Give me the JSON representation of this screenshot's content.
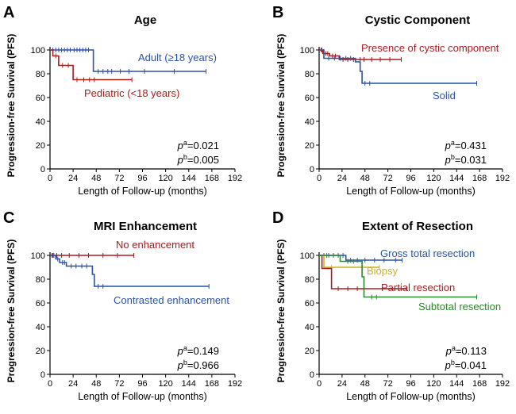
{
  "chart_data": [
    {
      "type": "line",
      "panel_letter": "A",
      "title": "Age",
      "xlabel": "Length of Follow-up (months)",
      "ylabel": "Progression-free Survival (PFS)",
      "xlim": [
        0,
        192
      ],
      "ylim": [
        0,
        100
      ],
      "xticks": [
        0,
        24,
        48,
        72,
        96,
        120,
        144,
        168,
        192
      ],
      "yticks": [
        0,
        20,
        40,
        60,
        80,
        100
      ],
      "pvalues": [
        {
          "sup": "a",
          "text": "=0.021"
        },
        {
          "sup": "b",
          "text": "=0.005"
        }
      ],
      "series": [
        {
          "name": "Adult (≥18 years)",
          "color": "#2a52a8",
          "steps": [
            [
              0,
              100
            ],
            [
              45,
              100
            ],
            [
              45,
              82
            ],
            [
              162,
              82
            ]
          ],
          "censors": [
            [
              3,
              100
            ],
            [
              6,
              100
            ],
            [
              9,
              100
            ],
            [
              12,
              100
            ],
            [
              15,
              100
            ],
            [
              18,
              100
            ],
            [
              21,
              100
            ],
            [
              25,
              100
            ],
            [
              28,
              100
            ],
            [
              31,
              100
            ],
            [
              34,
              100
            ],
            [
              37,
              100
            ],
            [
              40,
              100
            ],
            [
              50,
              82
            ],
            [
              55,
              82
            ],
            [
              60,
              82
            ],
            [
              64,
              82
            ],
            [
              73,
              82
            ],
            [
              82,
              82
            ],
            [
              98,
              82
            ],
            [
              129,
              82
            ],
            [
              162,
              82
            ]
          ]
        },
        {
          "name": "Pediatric (<18 years)",
          "color": "#a81c1c",
          "steps": [
            [
              0,
              100
            ],
            [
              3,
              100
            ],
            [
              3,
              95
            ],
            [
              9,
              95
            ],
            [
              9,
              87
            ],
            [
              24,
              87
            ],
            [
              24,
              75
            ],
            [
              85,
              75
            ]
          ],
          "censors": [
            [
              6,
              95
            ],
            [
              13,
              87
            ],
            [
              19,
              87
            ],
            [
              28,
              75
            ],
            [
              35,
              75
            ],
            [
              41,
              75
            ],
            [
              46,
              75
            ],
            [
              85,
              75
            ]
          ]
        }
      ]
    },
    {
      "type": "line",
      "panel_letter": "B",
      "title": "Cystic Component",
      "xlabel": "Length of Follow-up (months)",
      "ylabel": "Progression-free Survival (PFS)",
      "xlim": [
        0,
        192
      ],
      "ylim": [
        0,
        100
      ],
      "xticks": [
        0,
        24,
        48,
        72,
        96,
        120,
        144,
        168,
        192
      ],
      "yticks": [
        0,
        20,
        40,
        60,
        80,
        100
      ],
      "pvalues": [
        {
          "sup": "a",
          "text": "=0.431"
        },
        {
          "sup": "b",
          "text": "=0.031"
        }
      ],
      "series": [
        {
          "name": "Presence of cystic component",
          "color": "#a81c1c",
          "steps": [
            [
              0,
              100
            ],
            [
              4,
              100
            ],
            [
              4,
              97
            ],
            [
              11,
              97
            ],
            [
              11,
              95
            ],
            [
              21,
              95
            ],
            [
              21,
              92
            ],
            [
              86,
              92
            ]
          ],
          "censors": [
            [
              2,
              100
            ],
            [
              7,
              97
            ],
            [
              9,
              97
            ],
            [
              14,
              95
            ],
            [
              17,
              95
            ],
            [
              25,
              92
            ],
            [
              30,
              92
            ],
            [
              36,
              92
            ],
            [
              43,
              92
            ],
            [
              47,
              92
            ],
            [
              55,
              92
            ],
            [
              64,
              92
            ],
            [
              74,
              92
            ],
            [
              86,
              92
            ]
          ]
        },
        {
          "name": "Solid",
          "color": "#2a52a8",
          "steps": [
            [
              0,
              100
            ],
            [
              5,
              100
            ],
            [
              5,
              93
            ],
            [
              38,
              93
            ],
            [
              38,
              90
            ],
            [
              43,
              90
            ],
            [
              43,
              82
            ],
            [
              45,
              82
            ],
            [
              45,
              72
            ],
            [
              165,
              72
            ]
          ],
          "censors": [
            [
              3,
              100
            ],
            [
              10,
              93
            ],
            [
              16,
              93
            ],
            [
              22,
              93
            ],
            [
              28,
              93
            ],
            [
              33,
              93
            ],
            [
              48,
              72
            ],
            [
              53,
              72
            ],
            [
              165,
              72
            ]
          ]
        }
      ]
    },
    {
      "type": "line",
      "panel_letter": "C",
      "title": "MRI Enhancement",
      "xlabel": "Length of Follow-up (months)",
      "ylabel": "Progression-free Survival (PFS)",
      "xlim": [
        0,
        192
      ],
      "ylim": [
        0,
        100
      ],
      "xticks": [
        0,
        24,
        48,
        72,
        96,
        120,
        144,
        168,
        192
      ],
      "yticks": [
        0,
        20,
        40,
        60,
        80,
        100
      ],
      "pvalues": [
        {
          "sup": "a",
          "text": "=0.149"
        },
        {
          "sup": "b",
          "text": "=0.966"
        }
      ],
      "series": [
        {
          "name": "No enhancement",
          "color": "#a81c1c",
          "steps": [
            [
              0,
              100
            ],
            [
              87,
              100
            ]
          ],
          "censors": [
            [
              3,
              100
            ],
            [
              7,
              100
            ],
            [
              12,
              100
            ],
            [
              20,
              100
            ],
            [
              30,
              100
            ],
            [
              40,
              100
            ],
            [
              55,
              100
            ],
            [
              70,
              100
            ],
            [
              87,
              100
            ]
          ]
        },
        {
          "name": "Contrasted enhancement",
          "color": "#2a52a8",
          "steps": [
            [
              0,
              100
            ],
            [
              6,
              100
            ],
            [
              6,
              97
            ],
            [
              10,
              97
            ],
            [
              10,
              94
            ],
            [
              17,
              94
            ],
            [
              17,
              91
            ],
            [
              44,
              91
            ],
            [
              44,
              84
            ],
            [
              46,
              84
            ],
            [
              46,
              74
            ],
            [
              165,
              74
            ]
          ],
          "censors": [
            [
              2,
              100
            ],
            [
              4,
              100
            ],
            [
              8,
              97
            ],
            [
              13,
              94
            ],
            [
              15,
              94
            ],
            [
              22,
              91
            ],
            [
              27,
              91
            ],
            [
              33,
              91
            ],
            [
              38,
              91
            ],
            [
              50,
              74
            ],
            [
              55,
              74
            ],
            [
              165,
              74
            ]
          ]
        }
      ]
    },
    {
      "type": "line",
      "panel_letter": "D",
      "title": "Extent of Resection",
      "xlabel": "Length of Follow-up (months)",
      "ylabel": "Progression-free Survival (PFS)",
      "xlim": [
        0,
        192
      ],
      "ylim": [
        0,
        100
      ],
      "xticks": [
        0,
        24,
        48,
        72,
        96,
        120,
        144,
        168,
        192
      ],
      "yticks": [
        0,
        20,
        40,
        60,
        80,
        100
      ],
      "pvalues": [
        {
          "sup": "a",
          "text": "=0.113"
        },
        {
          "sup": "b",
          "text": "=0.041"
        }
      ],
      "series": [
        {
          "name": "Gross total resection",
          "color": "#2a52a8",
          "steps": [
            [
              0,
              100
            ],
            [
              28,
              100
            ],
            [
              28,
              96
            ],
            [
              87,
              96
            ]
          ],
          "censors": [
            [
              5,
              100
            ],
            [
              10,
              100
            ],
            [
              15,
              100
            ],
            [
              20,
              100
            ],
            [
              25,
              100
            ],
            [
              33,
              96
            ],
            [
              40,
              96
            ],
            [
              48,
              96
            ],
            [
              58,
              96
            ],
            [
              68,
              96
            ],
            [
              80,
              96
            ],
            [
              87,
              96
            ]
          ]
        },
        {
          "name": "Biopsy",
          "color": "#c8b41e",
          "steps": [
            [
              0,
              100
            ],
            [
              5,
              100
            ],
            [
              5,
              90
            ],
            [
              63,
              90
            ]
          ],
          "censors": [
            [
              13,
              90
            ],
            [
              63,
              90
            ]
          ]
        },
        {
          "name": "Partial resection",
          "color": "#a81c1c",
          "steps": [
            [
              0,
              100
            ],
            [
              3,
              100
            ],
            [
              3,
              89
            ],
            [
              13,
              89
            ],
            [
              13,
              72
            ],
            [
              92,
              72
            ]
          ],
          "censors": [
            [
              20,
              72
            ],
            [
              30,
              72
            ],
            [
              40,
              72
            ],
            [
              92,
              72
            ]
          ]
        },
        {
          "name": "Subtotal resection",
          "color": "#2a8a2a",
          "steps": [
            [
              0,
              100
            ],
            [
              22,
              100
            ],
            [
              22,
              95
            ],
            [
              45,
              95
            ],
            [
              45,
              82
            ],
            [
              47,
              82
            ],
            [
              47,
              65
            ],
            [
              165,
              65
            ]
          ],
          "censors": [
            [
              8,
              100
            ],
            [
              15,
              100
            ],
            [
              30,
              95
            ],
            [
              36,
              95
            ],
            [
              55,
              65
            ],
            [
              60,
              65
            ],
            [
              165,
              65
            ]
          ]
        }
      ]
    }
  ]
}
